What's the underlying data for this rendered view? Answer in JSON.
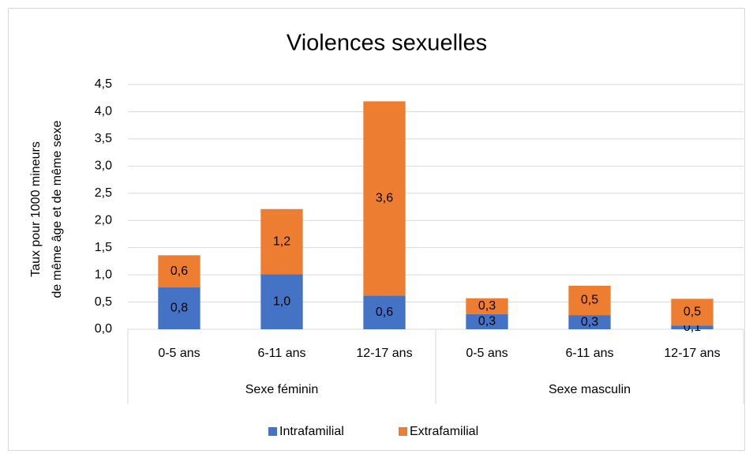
{
  "chart_data": {
    "type": "stacked_bar",
    "title": "Violences sexuelles",
    "y_label": [
      "Taux pour 1000 mineurs",
      "de même âge et de même sexe"
    ],
    "category_groups": [
      {
        "name": "Sexe féminin",
        "categories": [
          "0-5 ans",
          "6-11 ans",
          "12-17 ans"
        ]
      },
      {
        "name": "Sexe masculin",
        "categories": [
          "0-5 ans",
          "6-11 ans",
          "12-17 ans"
        ]
      }
    ],
    "series": [
      {
        "name": "Intrafamilial",
        "color": "#4472c4",
        "values": [
          0.77,
          1.01,
          0.62,
          0.28,
          0.26,
          0.07
        ],
        "value_labels": [
          "0,8",
          "1,0",
          "0,6",
          "0,3",
          "0,3",
          "0,1"
        ]
      },
      {
        "name": "Extrafamilial",
        "color": "#ed7d31",
        "values": [
          0.59,
          1.2,
          3.57,
          0.29,
          0.54,
          0.49
        ],
        "value_labels": [
          "0,6",
          "1,2",
          "3,6",
          "0,3",
          "0,5",
          "0,5"
        ]
      }
    ],
    "ylim": [
      0,
      4.5
    ],
    "yticks": [
      {
        "value": 0,
        "label": "0,0"
      },
      {
        "value": 0.5,
        "label": "0,5"
      },
      {
        "value": 1,
        "label": "1,0"
      },
      {
        "value": 1.5,
        "label": "1,5"
      },
      {
        "value": 2,
        "label": "2,0"
      },
      {
        "value": 2.5,
        "label": "2,5"
      },
      {
        "value": 3,
        "label": "3,0"
      },
      {
        "value": 3.5,
        "label": "3,5"
      },
      {
        "value": 4,
        "label": "4,0"
      },
      {
        "value": 4.5,
        "label": "4,5"
      }
    ],
    "grid": true,
    "legend": "bottom"
  }
}
